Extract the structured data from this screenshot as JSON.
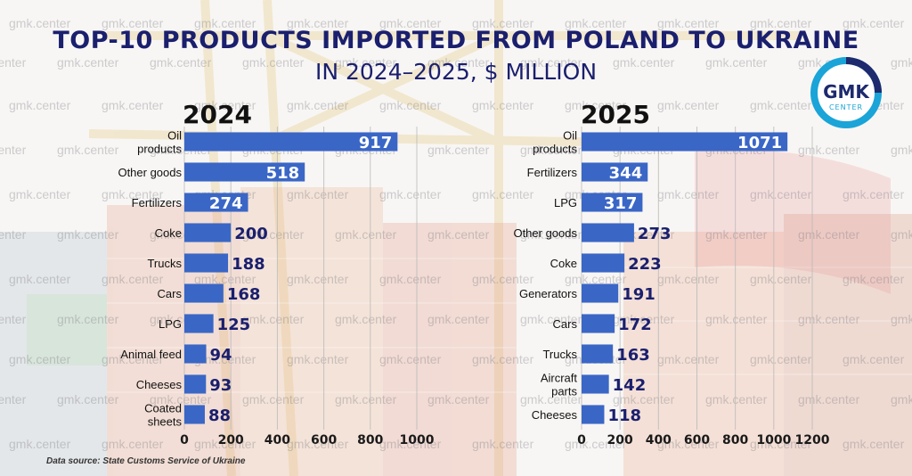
{
  "title": "TOP-10 PRODUCTS IMPORTED FROM POLAND TO UKRAINE",
  "subtitle": "IN 2024–2025, $ MILLION",
  "source": "Data source: State Customs Service of Ukraine",
  "watermark": "gmk.center",
  "logo": {
    "line1": "GMK",
    "line2": "CENTER"
  },
  "colors": {
    "bar": "#3a66c6",
    "title": "#1a1f6e",
    "logo": "#1aa4d8"
  },
  "chart_data": [
    {
      "type": "bar",
      "orientation": "horizontal",
      "title": "2024",
      "categories": [
        "Oil products",
        "Other goods",
        "Fertilizers",
        "Coke",
        "Trucks",
        "Cars",
        "LPG",
        "Animal feed",
        "Cheeses",
        "Coated sheets"
      ],
      "values": [
        917,
        518,
        274,
        200,
        188,
        168,
        125,
        94,
        93,
        88
      ],
      "xlim": [
        0,
        1000
      ],
      "xticks": [
        0,
        200,
        400,
        600,
        800,
        1000
      ],
      "grid": true
    },
    {
      "type": "bar",
      "orientation": "horizontal",
      "title": "2025",
      "categories": [
        "Oil products",
        "Fertilizers",
        "LPG",
        "Other goods",
        "Coke",
        "Generators",
        "Cars",
        "Trucks",
        "Aircraft parts",
        "Cheeses"
      ],
      "values": [
        1071,
        344,
        317,
        273,
        223,
        191,
        172,
        163,
        142,
        118
      ],
      "xlim": [
        0,
        1200
      ],
      "xticks": [
        0,
        200,
        400,
        600,
        800,
        1000,
        1200
      ],
      "grid": true
    }
  ]
}
